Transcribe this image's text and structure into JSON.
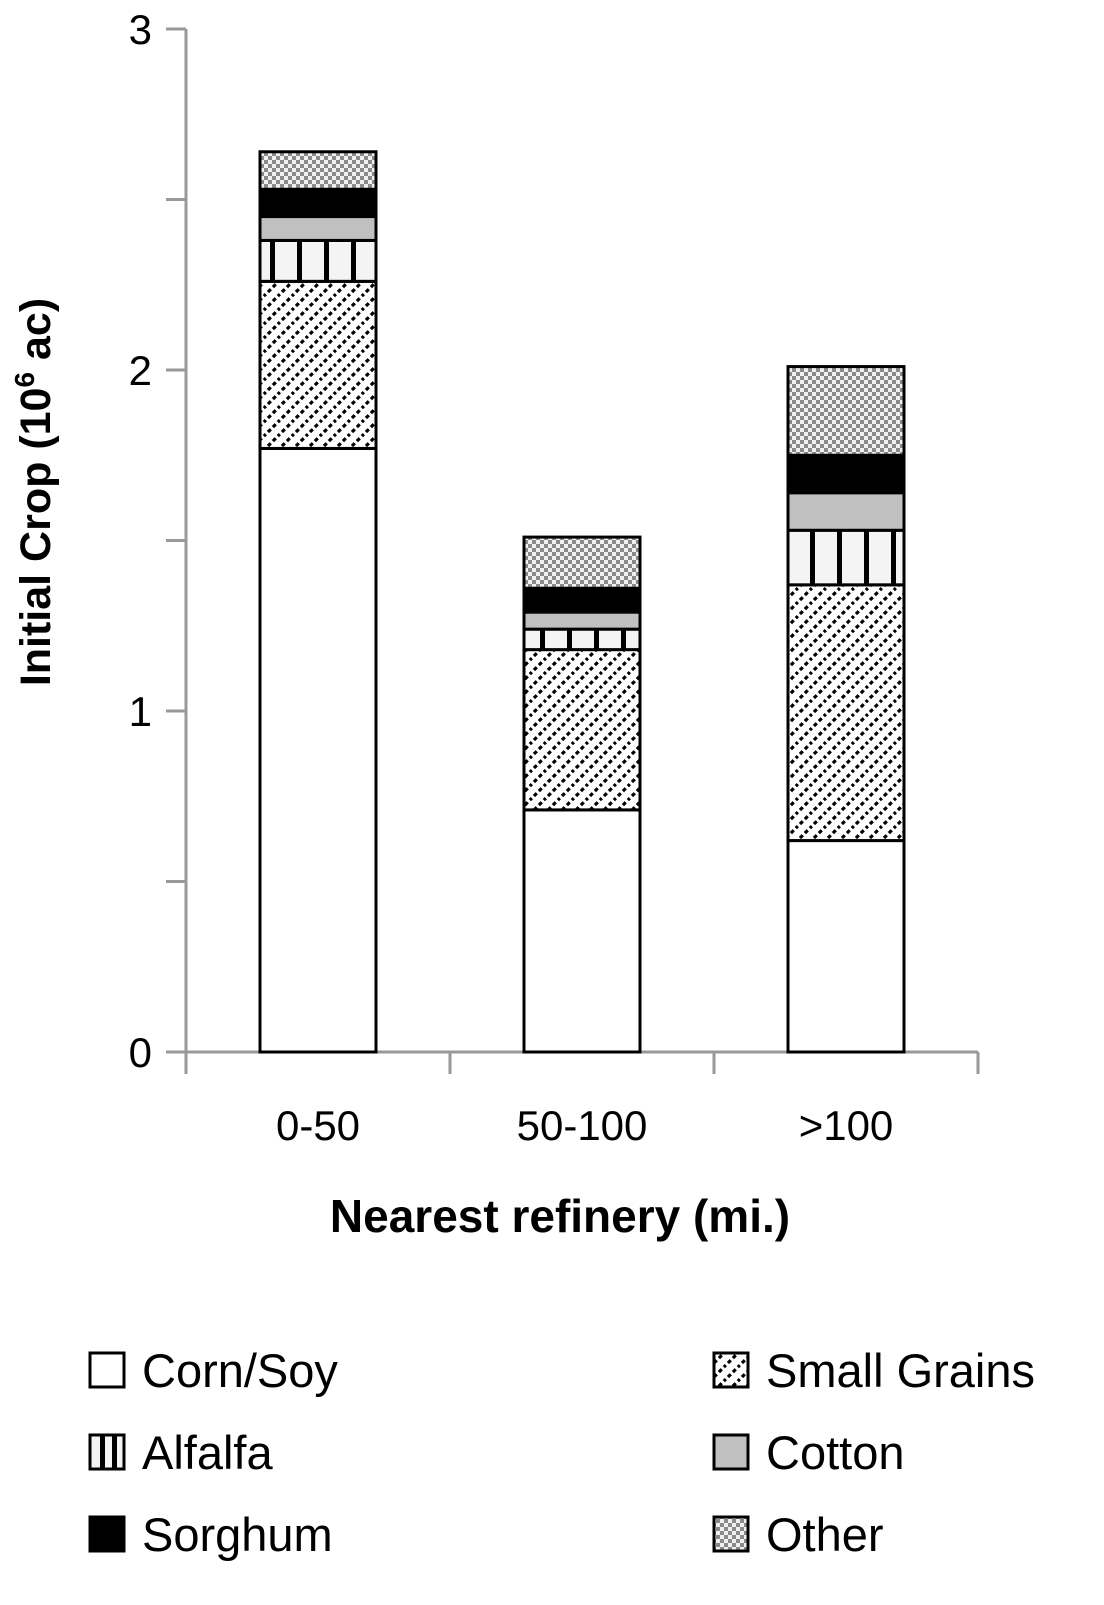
{
  "chart_data": {
    "type": "bar",
    "stacked": true,
    "xlabel": "Nearest refinery (mi.)",
    "ylabel": "Initial Crop (10⁶ ac)",
    "ylim": [
      0,
      3
    ],
    "yticks": [
      "0",
      "1",
      "2",
      "3"
    ],
    "categories": [
      "0-50",
      "50-100",
      ">100"
    ],
    "series": [
      {
        "name": "Corn/Soy",
        "pattern": "none",
        "values": [
          1.77,
          0.71,
          0.62
        ]
      },
      {
        "name": "Small Grains",
        "pattern": "diagonal",
        "values": [
          0.49,
          0.47,
          0.75
        ]
      },
      {
        "name": "Alfalfa",
        "pattern": "vertical",
        "values": [
          0.12,
          0.06,
          0.16
        ]
      },
      {
        "name": "Cotton",
        "pattern": "gray",
        "values": [
          0.07,
          0.05,
          0.11
        ]
      },
      {
        "name": "Sorghum",
        "pattern": "black",
        "values": [
          0.08,
          0.07,
          0.11
        ]
      },
      {
        "name": "Other",
        "pattern": "checker",
        "values": [
          0.11,
          0.15,
          0.26
        ]
      }
    ],
    "legend_position": "bottom",
    "legend_order": [
      "Corn/Soy",
      "Small Grains",
      "Alfalfa",
      "Cotton",
      "Sorghum",
      "Other"
    ],
    "grid": false,
    "colors": {
      "axis": "#999999",
      "bar_outline": "#000000",
      "cotton": "#c0c0c0",
      "sorghum": "#000000"
    }
  }
}
